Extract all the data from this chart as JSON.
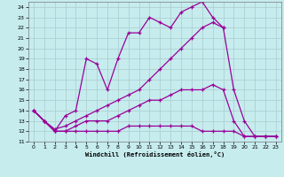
{
  "xlabel": "Windchill (Refroidissement éolien,°C)",
  "background_color": "#c6ecee",
  "line_color": "#990099",
  "grid_color": "#aacccc",
  "xlim": [
    0,
    23
  ],
  "ylim": [
    11,
    24.5
  ],
  "xticks": [
    0,
    1,
    2,
    3,
    4,
    5,
    6,
    7,
    8,
    9,
    10,
    11,
    12,
    13,
    14,
    15,
    16,
    17,
    18,
    19,
    20,
    21,
    22,
    23
  ],
  "yticks": [
    11,
    12,
    13,
    14,
    15,
    16,
    17,
    18,
    19,
    20,
    21,
    22,
    23,
    24
  ],
  "lines": [
    {
      "x": [
        0,
        1,
        2,
        3,
        4,
        5,
        6,
        7,
        8,
        9,
        10,
        11,
        12,
        13,
        14,
        15,
        16,
        17,
        18
      ],
      "y": [
        14,
        13,
        12,
        13.5,
        14,
        19,
        18.5,
        16,
        19,
        21.5,
        21.5,
        23,
        22.5,
        22,
        23.5,
        24,
        24.5,
        23,
        22
      ]
    },
    {
      "x": [
        0,
        1,
        2,
        3,
        4,
        5,
        6,
        7,
        8,
        9,
        10,
        11,
        12,
        13,
        14,
        15,
        16,
        17,
        18,
        19,
        20,
        21,
        22,
        23
      ],
      "y": [
        14,
        13,
        12.2,
        12.5,
        13,
        13.5,
        14,
        14.5,
        15,
        15.5,
        16,
        17,
        18,
        19,
        20,
        21,
        22,
        22.5,
        22,
        16,
        13,
        11.5,
        11.5,
        11.5
      ]
    },
    {
      "x": [
        0,
        1,
        2,
        3,
        4,
        5,
        6,
        7,
        8,
        9,
        10,
        11,
        12,
        13,
        14,
        15,
        16,
        17,
        18,
        19,
        20,
        21,
        22,
        23
      ],
      "y": [
        14,
        13,
        12,
        12,
        12.5,
        13,
        13,
        13,
        13.5,
        14,
        14.5,
        15,
        15,
        15.5,
        16,
        16,
        16,
        16.5,
        16,
        13,
        11.5,
        11.5,
        11.5,
        11.5
      ]
    },
    {
      "x": [
        0,
        1,
        2,
        3,
        4,
        5,
        6,
        7,
        8,
        9,
        10,
        11,
        12,
        13,
        14,
        15,
        16,
        17,
        18,
        19,
        20,
        21,
        22,
        23
      ],
      "y": [
        14,
        13,
        12,
        12,
        12,
        12,
        12,
        12,
        12,
        12.5,
        12.5,
        12.5,
        12.5,
        12.5,
        12.5,
        12.5,
        12,
        12,
        12,
        12,
        11.5,
        11.5,
        11.5,
        11.5
      ]
    }
  ]
}
